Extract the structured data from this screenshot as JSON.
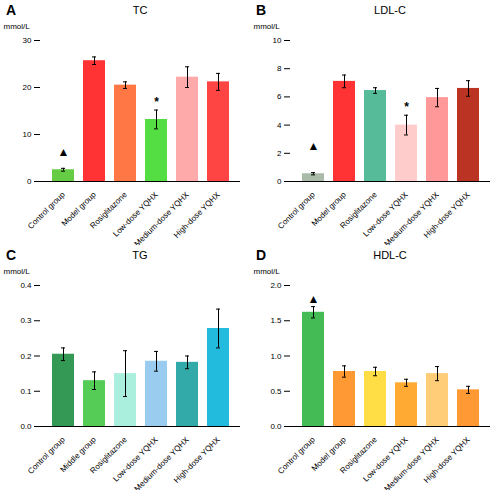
{
  "chart_data": [
    {
      "type": "bar",
      "panel_label": "A",
      "title": "TC",
      "ylabel": "mmol/L",
      "categories": [
        "Control group",
        "Model group",
        "Rosiglitazone",
        "Low-dose YQHX",
        "Medium-dose YQHX",
        "High-dose YQHX"
      ],
      "values": [
        2.5,
        25.7,
        20.5,
        13.2,
        22.2,
        21.2
      ],
      "errors": [
        0.3,
        0.8,
        0.7,
        2.0,
        2.2,
        1.8
      ],
      "colors": [
        "#66cc44",
        "#ff3333",
        "#ff7744",
        "#55dd44",
        "#ffaaaa",
        "#ff4444"
      ],
      "ylim": [
        0,
        30
      ],
      "yticks": [
        0,
        10,
        20,
        30
      ],
      "annotations": [
        {
          "text": "▲",
          "x": "Control group",
          "y": 5.5
        },
        {
          "text": "*",
          "x": "Low-dose YQHX",
          "y": 16.0
        }
      ]
    },
    {
      "type": "bar",
      "panel_label": "B",
      "title": "LDL-C",
      "ylabel": "mmol/L",
      "categories": [
        "Control group",
        "Model group",
        "Rosiglitazone",
        "Low-dose YQHX",
        "Medium-dose YQHX",
        "High-dose YQHX"
      ],
      "values": [
        0.55,
        7.1,
        6.45,
        4.0,
        5.95,
        6.6
      ],
      "errors": [
        0.08,
        0.45,
        0.2,
        0.7,
        0.65,
        0.55
      ],
      "colors": [
        "#aabbaa",
        "#ff3333",
        "#55bb99",
        "#ffcccc",
        "#ff9999",
        "#bb3322"
      ],
      "ylim": [
        0,
        10
      ],
      "yticks": [
        0,
        2,
        4,
        6,
        8,
        10
      ],
      "annotations": [
        {
          "text": "▲",
          "x": "Control group",
          "y": 2.2
        },
        {
          "text": "*",
          "x": "Low-dose YQHX",
          "y": 5.0
        }
      ]
    },
    {
      "type": "bar",
      "panel_label": "C",
      "title": "TG",
      "ylabel": "mmol/L",
      "categories": [
        "Control group",
        "Middle group",
        "Rosiglitazone",
        "Low-dose YQHX",
        "Medium-dose YQHX",
        "High-dose YQHX"
      ],
      "values": [
        0.205,
        0.13,
        0.15,
        0.185,
        0.182,
        0.278
      ],
      "errors": [
        0.018,
        0.025,
        0.065,
        0.028,
        0.018,
        0.055
      ],
      "colors": [
        "#339955",
        "#55cc55",
        "#aaeedd",
        "#99ccee",
        "#33aaaa",
        "#22bbdd"
      ],
      "ylim": [
        0,
        0.4
      ],
      "yticks": [
        {
          "value": 0,
          "label": "0.0"
        },
        0.1,
        0.2,
        0.3,
        0.4
      ]
    },
    {
      "type": "bar",
      "panel_label": "D",
      "title": "HDL-C",
      "ylabel": "mmol/L",
      "categories": [
        "Control group",
        "Model group",
        "Rosiglitazone",
        "Low-dose YQHX",
        "Medium-dose YQHX",
        "High-dose YQHX"
      ],
      "values": [
        1.62,
        0.78,
        0.78,
        0.62,
        0.75,
        0.52
      ],
      "errors": [
        0.08,
        0.08,
        0.06,
        0.05,
        0.1,
        0.05
      ],
      "colors": [
        "#44bb55",
        "#ff9933",
        "#ffdd44",
        "#ffaa33",
        "#ffcc77",
        "#ff9933"
      ],
      "ylim": [
        0,
        2.0
      ],
      "yticks": [
        {
          "value": 0,
          "label": "0.0"
        },
        0.5,
        {
          "value": 1,
          "label": "1.0"
        },
        1.5,
        {
          "value": 2,
          "label": "2.0"
        }
      ],
      "annotations": [
        {
          "text": "▲",
          "x": "Control group",
          "y": 1.75
        }
      ]
    }
  ]
}
